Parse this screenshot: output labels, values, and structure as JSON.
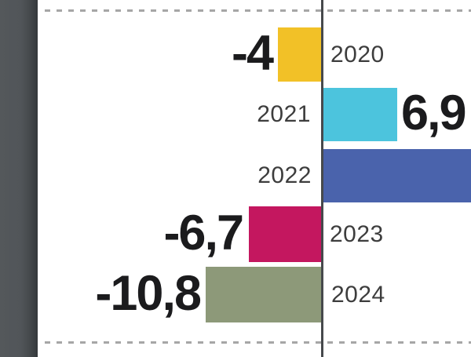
{
  "chart_data": {
    "type": "bar",
    "orientation": "horizontal-diverging",
    "title": "",
    "xlabel": "",
    "ylabel": "",
    "categories": [
      "2020",
      "2021",
      "2022",
      "2023",
      "2024"
    ],
    "values": [
      -4,
      6.9,
      null,
      -6.7,
      -10.8
    ],
    "value_labels": [
      "-4",
      "6,9",
      "",
      "-6,7",
      "-10,8"
    ],
    "decimal_separator": ",",
    "axis": {
      "zero_line_color": "#46494C",
      "gridline_style": "dashed",
      "gridline_color": "#A6A6A6"
    },
    "notes": "2022 bar is clipped at the right edge of the view; its value label is not visible",
    "rows": [
      {
        "year": "2020",
        "value_label": "-4",
        "value": -4,
        "bar_color": "#F2C127",
        "direction": "negative-left"
      },
      {
        "year": "2021",
        "value_label": "6,9",
        "value": 6.9,
        "bar_color": "#4CC4DD",
        "direction": "positive-right"
      },
      {
        "year": "2022",
        "value_label": "",
        "value": null,
        "bar_color": "#4A63AC",
        "direction": "positive-right-clipped"
      },
      {
        "year": "2023",
        "value_label": "-6,7",
        "value": -6.7,
        "bar_color": "#C4175F",
        "direction": "negative-left"
      },
      {
        "year": "2024",
        "value_label": "-10,8",
        "value": -10.8,
        "bar_color": "#8D9979",
        "direction": "negative-left"
      }
    ]
  },
  "panel": {
    "left_strip_color": "#515559"
  }
}
